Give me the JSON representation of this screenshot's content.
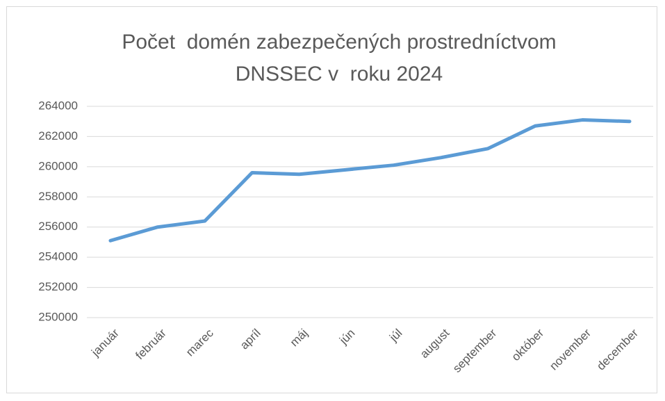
{
  "chart_data": {
    "type": "line",
    "title": "Počet  domén zabezpečených prostredníctvom DNSSEC v  roku 2024",
    "categories": [
      "január",
      "február",
      "marec",
      "apríl",
      "máj",
      "jún",
      "júl",
      "august",
      "september",
      "október",
      "november",
      "december"
    ],
    "values": [
      255100,
      256000,
      256400,
      259600,
      259500,
      259800,
      260100,
      260600,
      261200,
      262700,
      263100,
      263000
    ],
    "color": "#5b9bd5",
    "ylim": [
      250000,
      264000
    ],
    "yticks": [
      250000,
      252000,
      254000,
      256000,
      258000,
      260000,
      262000,
      264000
    ],
    "grid": true
  }
}
